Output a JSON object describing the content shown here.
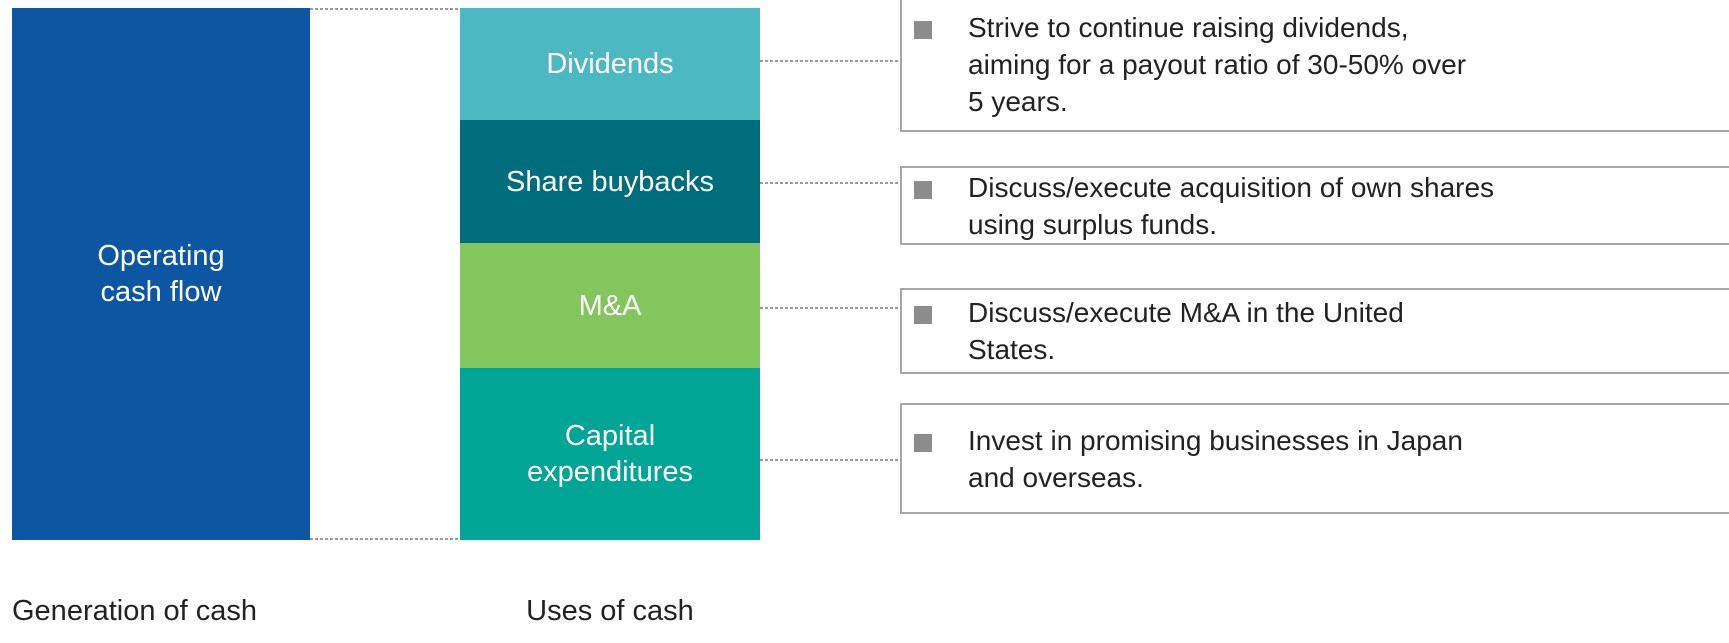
{
  "source": {
    "lines": [
      "Operating",
      "cash flow"
    ]
  },
  "uses": [
    {
      "lines": [
        "Dividends"
      ],
      "color": "#4cb9c2"
    },
    {
      "lines": [
        "Share buybacks"
      ],
      "color": "#006d7c"
    },
    {
      "lines": [
        "M&A"
      ],
      "color": "#84c65e"
    },
    {
      "lines": [
        "Capital",
        "expenditures"
      ],
      "color": "#00a596"
    }
  ],
  "notes": [
    {
      "lines": [
        "Strive to continue raising dividends,",
        "aiming for a payout ratio of 30-50% over",
        "5 years."
      ]
    },
    {
      "lines": [
        "Discuss/execute acquisition of own shares",
        "using surplus funds."
      ]
    },
    {
      "lines": [
        "Discuss/execute M&A in the United",
        "States."
      ]
    },
    {
      "lines": [
        "Invest in promising businesses in Japan",
        "and overseas."
      ]
    }
  ],
  "captions": {
    "left": "Generation of cash",
    "right": "Uses of cash"
  }
}
